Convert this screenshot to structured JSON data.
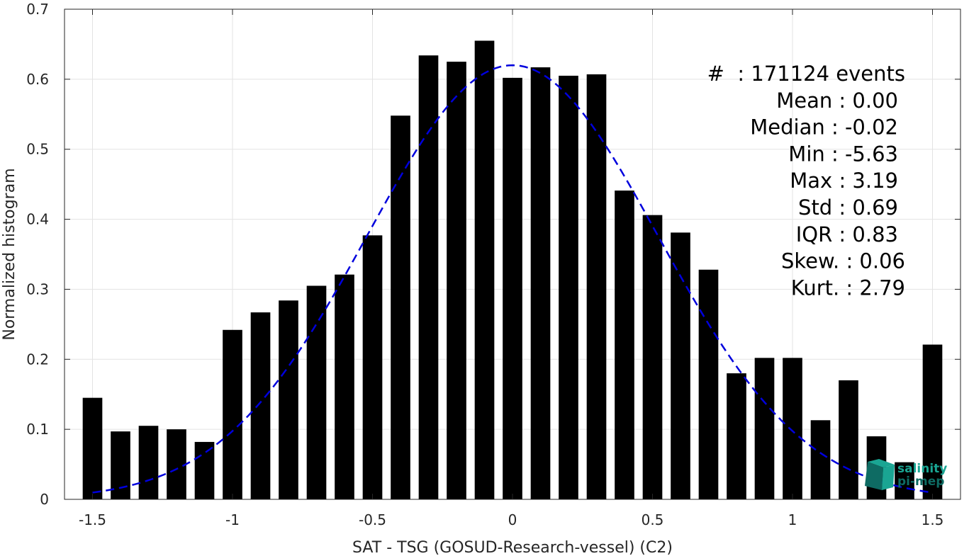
{
  "chart_data": {
    "type": "bar",
    "xlabel": "SAT - TSG (GOSUD-Research-vessel) (C2)",
    "ylabel": "Normalized histogram",
    "xlim": [
      -1.6,
      1.6
    ],
    "ylim": [
      0,
      0.7
    ],
    "xticks": [
      "-1.5",
      "-1",
      "-0.5",
      "0",
      "0.5",
      "1",
      "1.5"
    ],
    "xtick_values": [
      -1.5,
      -1,
      -0.5,
      0,
      0.5,
      1,
      1.5
    ],
    "yticks": [
      "0",
      "0.1",
      "0.2",
      "0.3",
      "0.4",
      "0.5",
      "0.6",
      "0.7"
    ],
    "ytick_values": [
      0,
      0.1,
      0.2,
      0.3,
      0.4,
      0.5,
      0.6,
      0.7
    ],
    "grid": true,
    "bar_color": "#000000",
    "bin_width": 0.1,
    "bars": {
      "x": [
        -1.5,
        -1.4,
        -1.3,
        -1.2,
        -1.1,
        -1.0,
        -0.9,
        -0.8,
        -0.7,
        -0.6,
        -0.5,
        -0.4,
        -0.3,
        -0.2,
        -0.1,
        0.0,
        0.1,
        0.2,
        0.3,
        0.4,
        0.5,
        0.6,
        0.7,
        0.8,
        0.9,
        1.0,
        1.1,
        1.2,
        1.3,
        1.4,
        1.5
      ],
      "values": [
        0.145,
        0.097,
        0.105,
        0.1,
        0.082,
        0.242,
        0.267,
        0.284,
        0.305,
        0.321,
        0.377,
        0.548,
        0.634,
        0.625,
        0.655,
        0.602,
        0.617,
        0.605,
        0.607,
        0.441,
        0.406,
        0.381,
        0.328,
        0.18,
        0.202,
        0.202,
        0.113,
        0.17,
        0.09,
        0.053,
        0.221
      ]
    },
    "fit_curve": {
      "style": "dashed",
      "color": "#0000dd",
      "mean": 0.0,
      "peak": 0.62,
      "sigma": 0.52,
      "x_range": [
        -1.5,
        1.5
      ]
    },
    "stats": [
      {
        "label": "#",
        "value": ": 171124 events"
      },
      {
        "label": "Mean",
        "value": ": 0.00"
      },
      {
        "label": "Median",
        "value": ": -0.02"
      },
      {
        "label": "Min",
        "value": ": -5.63"
      },
      {
        "label": "Max",
        "value": ": 3.19"
      },
      {
        "label": "Std",
        "value": ": 0.69"
      },
      {
        "label": "IQR",
        "value": ": 0.83"
      },
      {
        "label": "Skew.",
        "value": ": 0.06"
      },
      {
        "label": "Kurt.",
        "value": ": 2.79"
      }
    ]
  },
  "logo": {
    "line1": "salinity",
    "line2": "pi-mep",
    "color_primary": "#1aa593",
    "color_dark": "#0e6b63"
  }
}
